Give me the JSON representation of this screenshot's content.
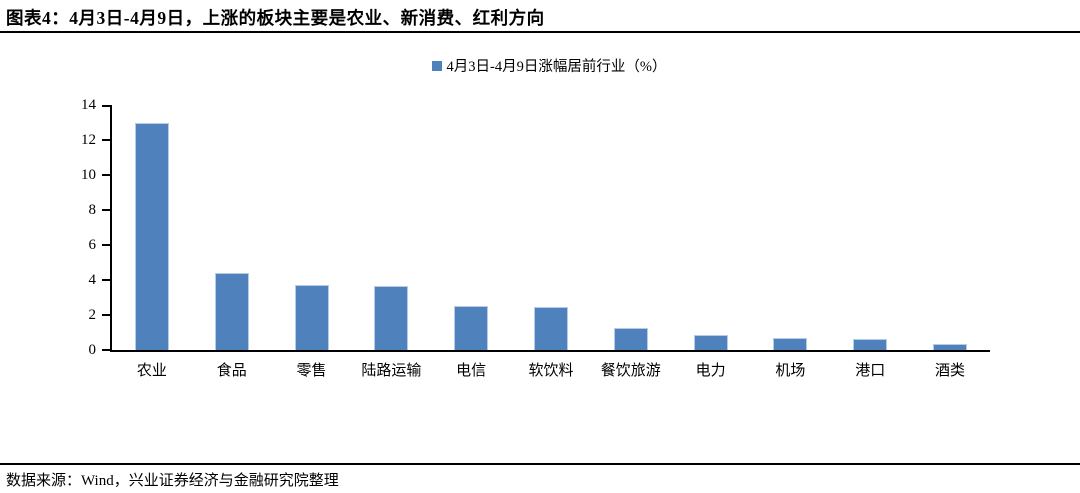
{
  "page": {
    "title": "图表4：4月3日-4月9日，上涨的板块主要是农业、新消费、红利方向",
    "footer": "数据来源：Wind，兴业证券经济与金融研究院整理"
  },
  "chart_data": {
    "type": "bar",
    "title": "",
    "legend": "4月3日-4月9日涨幅居前行业（%）",
    "legend_position": "top-center",
    "categories": [
      "农业",
      "食品",
      "零售",
      "陆路运输",
      "电信",
      "软饮料",
      "餐饮旅游",
      "电力",
      "机场",
      "港口",
      "酒类"
    ],
    "values": [
      13.0,
      4.4,
      3.7,
      3.65,
      2.5,
      2.45,
      1.25,
      0.85,
      0.68,
      0.62,
      0.35
    ],
    "xlabel": "",
    "ylabel": "",
    "ylim": [
      0,
      14
    ],
    "ytick_step": 2,
    "grid": false,
    "bar_color": "#4F81BD",
    "bar_border_color": "#B7CBE2",
    "axis_color": "#000000"
  }
}
